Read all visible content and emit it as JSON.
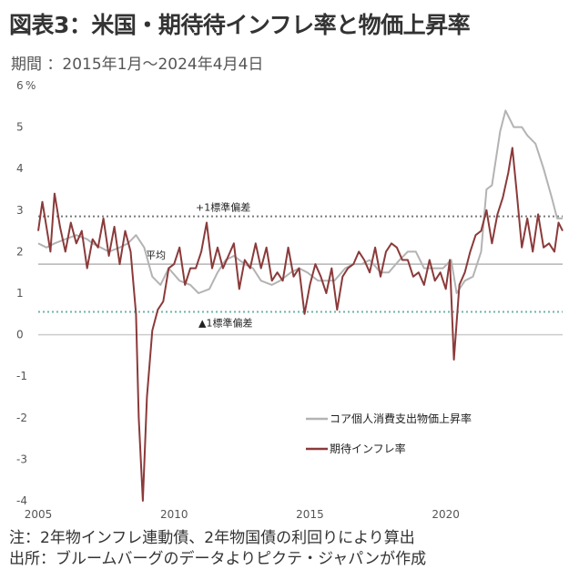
{
  "header": {
    "title": "図表3：米国・期待待インフレ率と物価上昇率",
    "subtitle": "期間 ：2015年1月～2024年4月4日"
  },
  "footer": {
    "note": "注：2年物インフレ連動債、2年物国債の利回りにより算出",
    "source": "出所：ブルームバーグのデータよりピクテ・ジャパンが作成"
  },
  "chart_data": {
    "type": "line",
    "title": "",
    "xlabel": "",
    "ylabel": "",
    "y_unit_label": "%",
    "xlim": [
      2005,
      2024.3
    ],
    "ylim": [
      -4,
      6
    ],
    "x_ticks": [
      "2005",
      "2010",
      "2015",
      "2020"
    ],
    "y_ticks": [
      "6",
      "5",
      "4",
      "3",
      "2",
      "1",
      "0",
      "-1",
      "-2",
      "-3",
      "-4"
    ],
    "grid": false,
    "legend_position": "bottom-right",
    "reference_lines": [
      {
        "label": "+1標準偏差",
        "value": 2.85,
        "style": "dotted",
        "color": "#7a7a7a"
      },
      {
        "label": "平均",
        "value": 1.7,
        "style": "solid",
        "color": "#b5b5b5"
      },
      {
        "label": "▲1標準偏差",
        "value": 0.55,
        "style": "dotted",
        "color": "#6fb3a8"
      },
      {
        "label": "",
        "value": 0,
        "style": "solid",
        "color": "#cccccc"
      }
    ],
    "series": [
      {
        "name": "コア個人消費支出物価上昇率",
        "color": "#b3b3b3",
        "x": [
          2005.0,
          2005.3,
          2005.6,
          2006.0,
          2006.4,
          2006.8,
          2007.0,
          2007.3,
          2007.6,
          2008.0,
          2008.3,
          2008.6,
          2008.9,
          2009.2,
          2009.5,
          2009.8,
          2010.2,
          2010.6,
          2010.9,
          2011.3,
          2011.6,
          2011.9,
          2012.2,
          2012.6,
          2012.9,
          2013.2,
          2013.6,
          2013.9,
          2014.3,
          2014.6,
          2014.9,
          2015.3,
          2015.6,
          2015.9,
          2016.3,
          2016.6,
          2016.9,
          2017.2,
          2017.6,
          2017.9,
          2018.3,
          2018.6,
          2018.9,
          2019.2,
          2019.6,
          2019.9,
          2020.2,
          2020.4,
          2020.7,
          2021.0,
          2021.3,
          2021.5,
          2021.7,
          2022.0,
          2022.2,
          2022.5,
          2022.8,
          2023.0,
          2023.3,
          2023.6,
          2023.9,
          2024.1,
          2024.3
        ],
        "values": [
          2.2,
          2.1,
          2.2,
          2.3,
          2.4,
          2.3,
          2.2,
          2.1,
          2.0,
          2.1,
          2.2,
          2.4,
          2.1,
          1.4,
          1.2,
          1.6,
          1.3,
          1.2,
          1.0,
          1.1,
          1.5,
          1.8,
          1.9,
          1.7,
          1.6,
          1.3,
          1.2,
          1.3,
          1.5,
          1.6,
          1.5,
          1.3,
          1.3,
          1.3,
          1.6,
          1.7,
          1.7,
          1.8,
          1.5,
          1.5,
          1.8,
          2.0,
          2.0,
          1.6,
          1.6,
          1.6,
          1.8,
          1.0,
          1.3,
          1.4,
          2.0,
          3.5,
          3.6,
          4.9,
          5.4,
          5.0,
          5.0,
          4.8,
          4.6,
          4.0,
          3.3,
          2.8,
          2.8
        ]
      },
      {
        "name": "期待インフレ率",
        "color": "#8b3a3a",
        "x": [
          2005.0,
          2005.15,
          2005.3,
          2005.45,
          2005.6,
          2005.8,
          2006.0,
          2006.2,
          2006.4,
          2006.6,
          2006.8,
          2007.0,
          2007.2,
          2007.4,
          2007.6,
          2007.8,
          2008.0,
          2008.2,
          2008.4,
          2008.6,
          2008.7,
          2008.85,
          2009.0,
          2009.2,
          2009.4,
          2009.6,
          2009.8,
          2010.0,
          2010.2,
          2010.4,
          2010.6,
          2010.8,
          2011.0,
          2011.2,
          2011.4,
          2011.6,
          2011.8,
          2012.0,
          2012.2,
          2012.4,
          2012.6,
          2012.8,
          2013.0,
          2013.2,
          2013.4,
          2013.6,
          2013.8,
          2014.0,
          2014.2,
          2014.4,
          2014.6,
          2014.8,
          2015.0,
          2015.2,
          2015.4,
          2015.6,
          2015.8,
          2016.0,
          2016.2,
          2016.4,
          2016.6,
          2016.8,
          2017.0,
          2017.2,
          2017.4,
          2017.6,
          2017.8,
          2018.0,
          2018.2,
          2018.4,
          2018.6,
          2018.8,
          2019.0,
          2019.2,
          2019.4,
          2019.6,
          2019.8,
          2020.0,
          2020.15,
          2020.3,
          2020.5,
          2020.7,
          2020.9,
          2021.1,
          2021.3,
          2021.5,
          2021.7,
          2021.9,
          2022.1,
          2022.3,
          2022.45,
          2022.6,
          2022.8,
          2023.0,
          2023.2,
          2023.4,
          2023.6,
          2023.8,
          2024.0,
          2024.15,
          2024.3
        ],
        "values": [
          2.5,
          3.2,
          2.6,
          2.0,
          3.4,
          2.6,
          2.0,
          2.7,
          2.2,
          2.5,
          1.6,
          2.3,
          2.1,
          2.8,
          1.9,
          2.6,
          1.7,
          2.5,
          2.0,
          0.5,
          -2.0,
          -4.0,
          -1.5,
          0.1,
          0.6,
          0.8,
          1.6,
          1.7,
          2.1,
          1.2,
          1.6,
          1.6,
          2.0,
          2.7,
          1.6,
          2.1,
          1.6,
          1.9,
          2.2,
          1.1,
          1.8,
          1.6,
          2.2,
          1.6,
          2.1,
          1.3,
          1.5,
          1.3,
          2.1,
          1.4,
          1.6,
          0.5,
          1.2,
          1.7,
          1.4,
          1.0,
          1.6,
          0.6,
          1.4,
          1.6,
          1.7,
          2.0,
          1.8,
          1.5,
          2.1,
          1.4,
          2.0,
          2.2,
          2.1,
          1.8,
          1.8,
          1.4,
          1.5,
          1.2,
          1.8,
          1.3,
          1.5,
          1.1,
          1.8,
          -0.6,
          1.2,
          1.5,
          2.0,
          2.4,
          2.5,
          3.0,
          2.2,
          2.9,
          3.3,
          3.9,
          4.5,
          3.5,
          2.1,
          2.8,
          2.0,
          2.9,
          2.1,
          2.2,
          2.0,
          2.7,
          2.5
        ]
      }
    ]
  }
}
